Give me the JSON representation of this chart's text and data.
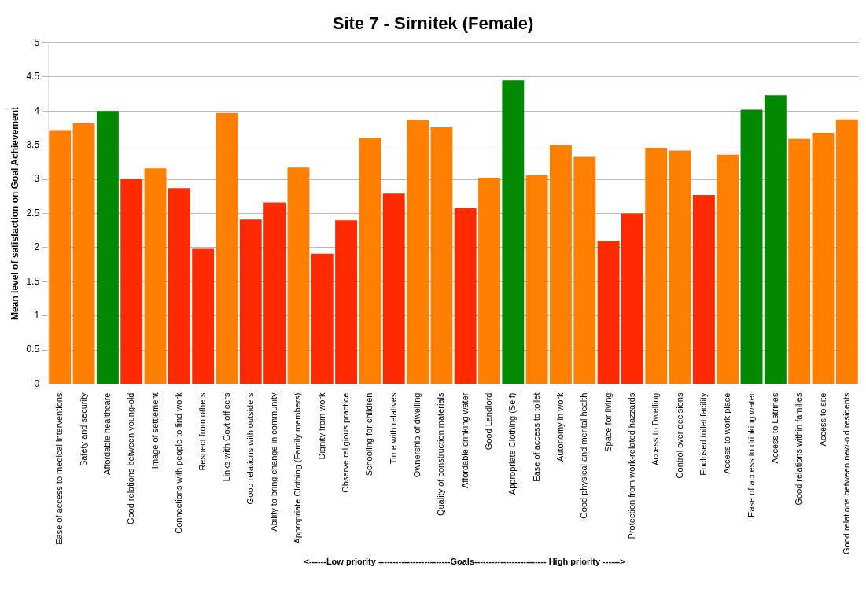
{
  "chart_data": {
    "type": "bar",
    "title": "Site 7 - Sirnitek (Female)",
    "ylabel": "Mean level of satisfaction on Goal Achievement",
    "categories": [
      "Ease of access to medical interventions",
      "Safety and security",
      "Affordable healthcare",
      "Good relations between young-old",
      "Image of settlement",
      "Connections with people to find work",
      "Respect from others",
      "Links with Govt officers",
      "Good relations with outsiders",
      "Ability to bring change in community",
      "Appropriate Clothing (Family members)",
      "Dignity from work",
      "Observe religious practice",
      "Schooling for children",
      "Time with relatives",
      "Ownership of dwelling",
      "Quality of construction materials",
      "Affordable drinking water",
      "Good Landlord",
      "Appropriate Clothing (Self)",
      "Ease of access to toilet",
      "Autonomy in work",
      "Good physical and mental health",
      "Space for living",
      "Protection from work-related hazzards",
      "Access to Dwelling",
      "Control over decisions",
      "Enclosed toilet facility",
      "Access to work place",
      "Ease of access to drinking water",
      "Access to Latrines",
      "Good relations within families",
      "Access to site",
      "Good relations between new-old residents"
    ],
    "values": [
      3.72,
      3.82,
      4.0,
      3.0,
      3.16,
      2.87,
      1.98,
      3.97,
      2.41,
      2.66,
      3.17,
      1.91,
      2.4,
      3.6,
      2.79,
      3.87,
      3.76,
      2.58,
      3.02,
      4.45,
      3.06,
      3.5,
      3.33,
      2.1,
      2.5,
      3.46,
      3.42,
      2.77,
      3.36,
      4.02,
      4.23,
      3.59,
      3.68,
      3.88
    ],
    "colors": [
      "#ff7f00",
      "#ff7f00",
      "#008800",
      "#ff2a00",
      "#ff7f00",
      "#ff2a00",
      "#ff2a00",
      "#ff7f00",
      "#ff2a00",
      "#ff2a00",
      "#ff7f00",
      "#ff2a00",
      "#ff2a00",
      "#ff7f00",
      "#ff2a00",
      "#ff7f00",
      "#ff7f00",
      "#ff2a00",
      "#ff7f00",
      "#008800",
      "#ff7f00",
      "#ff7f00",
      "#ff7f00",
      "#ff2a00",
      "#ff2a00",
      "#ff7f00",
      "#ff7f00",
      "#ff2a00",
      "#ff7f00",
      "#008800",
      "#008800",
      "#ff7f00",
      "#ff7f00",
      "#ff7f00"
    ],
    "ylim": [
      0,
      5
    ],
    "yticks": [
      0,
      0.5,
      1,
      1.5,
      2,
      2.5,
      3,
      3.5,
      4,
      4.5,
      5
    ],
    "grid": "y",
    "legend": false,
    "annotations": [
      "<------Low priority -------------------------Goals------------------------- High priority ------>"
    ]
  }
}
